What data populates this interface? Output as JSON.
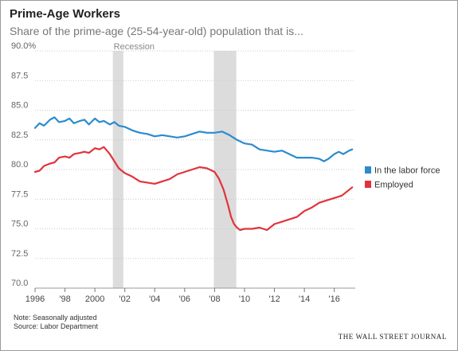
{
  "title": "Prime-Age Workers",
  "subtitle": "Share of the prime-age (25-54-year-old) population that is...",
  "notes": {
    "note": "Note: Seasonally adjusted",
    "source": "Source: Labor Department"
  },
  "brand": "THE WALL STREET JOURNAL",
  "chart_data": {
    "type": "line",
    "xlim": [
      1996,
      2017.4
    ],
    "ylim": [
      70,
      90
    ],
    "y_ticks": [
      {
        "value": 90,
        "label": "90.0%"
      },
      {
        "value": 87.5,
        "label": "87.5"
      },
      {
        "value": 85,
        "label": "85.0"
      },
      {
        "value": 82.5,
        "label": "82.5"
      },
      {
        "value": 80,
        "label": "80.0"
      },
      {
        "value": 77.5,
        "label": "77.5"
      },
      {
        "value": 75,
        "label": "75.0"
      },
      {
        "value": 72.5,
        "label": "72.5"
      },
      {
        "value": 70,
        "label": "70.0"
      }
    ],
    "x_ticks": [
      {
        "value": 1996,
        "label": "1996"
      },
      {
        "value": 1998,
        "label": "'98"
      },
      {
        "value": 2000,
        "label": "2000"
      },
      {
        "value": 2002,
        "label": "'02"
      },
      {
        "value": 2004,
        "label": "'04"
      },
      {
        "value": 2006,
        "label": "'06"
      },
      {
        "value": 2008,
        "label": "'08"
      },
      {
        "value": 2010,
        "label": "'10"
      },
      {
        "value": 2012,
        "label": "'12"
      },
      {
        "value": 2014,
        "label": "'14"
      },
      {
        "value": 2016,
        "label": "'16"
      }
    ],
    "recessions": [
      {
        "start": 2001.2,
        "end": 2001.9,
        "label": "Recession"
      },
      {
        "start": 2007.95,
        "end": 2009.45,
        "label": ""
      }
    ],
    "grid": true,
    "legend": "right",
    "series": [
      {
        "name": "In the labor force",
        "color": "#2a8ccf",
        "x": [
          1996.0,
          1996.3,
          1996.6,
          1997.0,
          1997.3,
          1997.6,
          1998.0,
          1998.3,
          1998.6,
          1999.0,
          1999.3,
          1999.6,
          2000.0,
          2000.3,
          2000.6,
          2001.0,
          2001.3,
          2001.6,
          2002.0,
          2002.5,
          2003.0,
          2003.5,
          2004.0,
          2004.5,
          2005.0,
          2005.5,
          2006.0,
          2006.5,
          2007.0,
          2007.5,
          2008.0,
          2008.5,
          2009.0,
          2009.5,
          2010.0,
          2010.5,
          2011.0,
          2011.5,
          2012.0,
          2012.5,
          2013.0,
          2013.5,
          2014.0,
          2014.5,
          2015.0,
          2015.3,
          2015.6,
          2016.0,
          2016.3,
          2016.6,
          2017.0,
          2017.2
        ],
        "values": [
          83.5,
          83.9,
          83.7,
          84.2,
          84.4,
          84.0,
          84.1,
          84.3,
          83.9,
          84.1,
          84.2,
          83.8,
          84.3,
          84.0,
          84.1,
          83.8,
          84.0,
          83.7,
          83.6,
          83.3,
          83.1,
          83.0,
          82.8,
          82.9,
          82.8,
          82.7,
          82.8,
          83.0,
          83.2,
          83.1,
          83.1,
          83.2,
          82.9,
          82.5,
          82.2,
          82.1,
          81.7,
          81.6,
          81.5,
          81.6,
          81.3,
          81.0,
          81.0,
          81.0,
          80.9,
          80.7,
          80.9,
          81.3,
          81.5,
          81.3,
          81.6,
          81.7
        ]
      },
      {
        "name": "Employed",
        "color": "#e0343c",
        "x": [
          1996.0,
          1996.3,
          1996.6,
          1997.0,
          1997.3,
          1997.6,
          1998.0,
          1998.3,
          1998.6,
          1999.0,
          1999.3,
          1999.6,
          2000.0,
          2000.3,
          2000.6,
          2001.0,
          2001.3,
          2001.6,
          2002.0,
          2002.5,
          2003.0,
          2003.5,
          2004.0,
          2004.5,
          2005.0,
          2005.5,
          2006.0,
          2006.5,
          2007.0,
          2007.5,
          2008.0,
          2008.3,
          2008.6,
          2008.9,
          2009.1,
          2009.3,
          2009.5,
          2009.7,
          2010.0,
          2010.5,
          2011.0,
          2011.5,
          2012.0,
          2012.5,
          2013.0,
          2013.5,
          2014.0,
          2014.5,
          2015.0,
          2015.5,
          2016.0,
          2016.5,
          2017.0,
          2017.2
        ],
        "values": [
          79.8,
          79.9,
          80.3,
          80.5,
          80.6,
          81.0,
          81.1,
          81.0,
          81.3,
          81.4,
          81.5,
          81.4,
          81.8,
          81.7,
          81.9,
          81.3,
          80.7,
          80.1,
          79.7,
          79.4,
          79.0,
          78.9,
          78.8,
          79.0,
          79.2,
          79.6,
          79.8,
          80.0,
          80.2,
          80.1,
          79.8,
          79.2,
          78.3,
          77.0,
          76.0,
          75.4,
          75.1,
          74.9,
          75.0,
          75.0,
          75.1,
          74.9,
          75.4,
          75.6,
          75.8,
          76.0,
          76.5,
          76.8,
          77.2,
          77.4,
          77.6,
          77.8,
          78.3,
          78.5
        ]
      }
    ]
  }
}
